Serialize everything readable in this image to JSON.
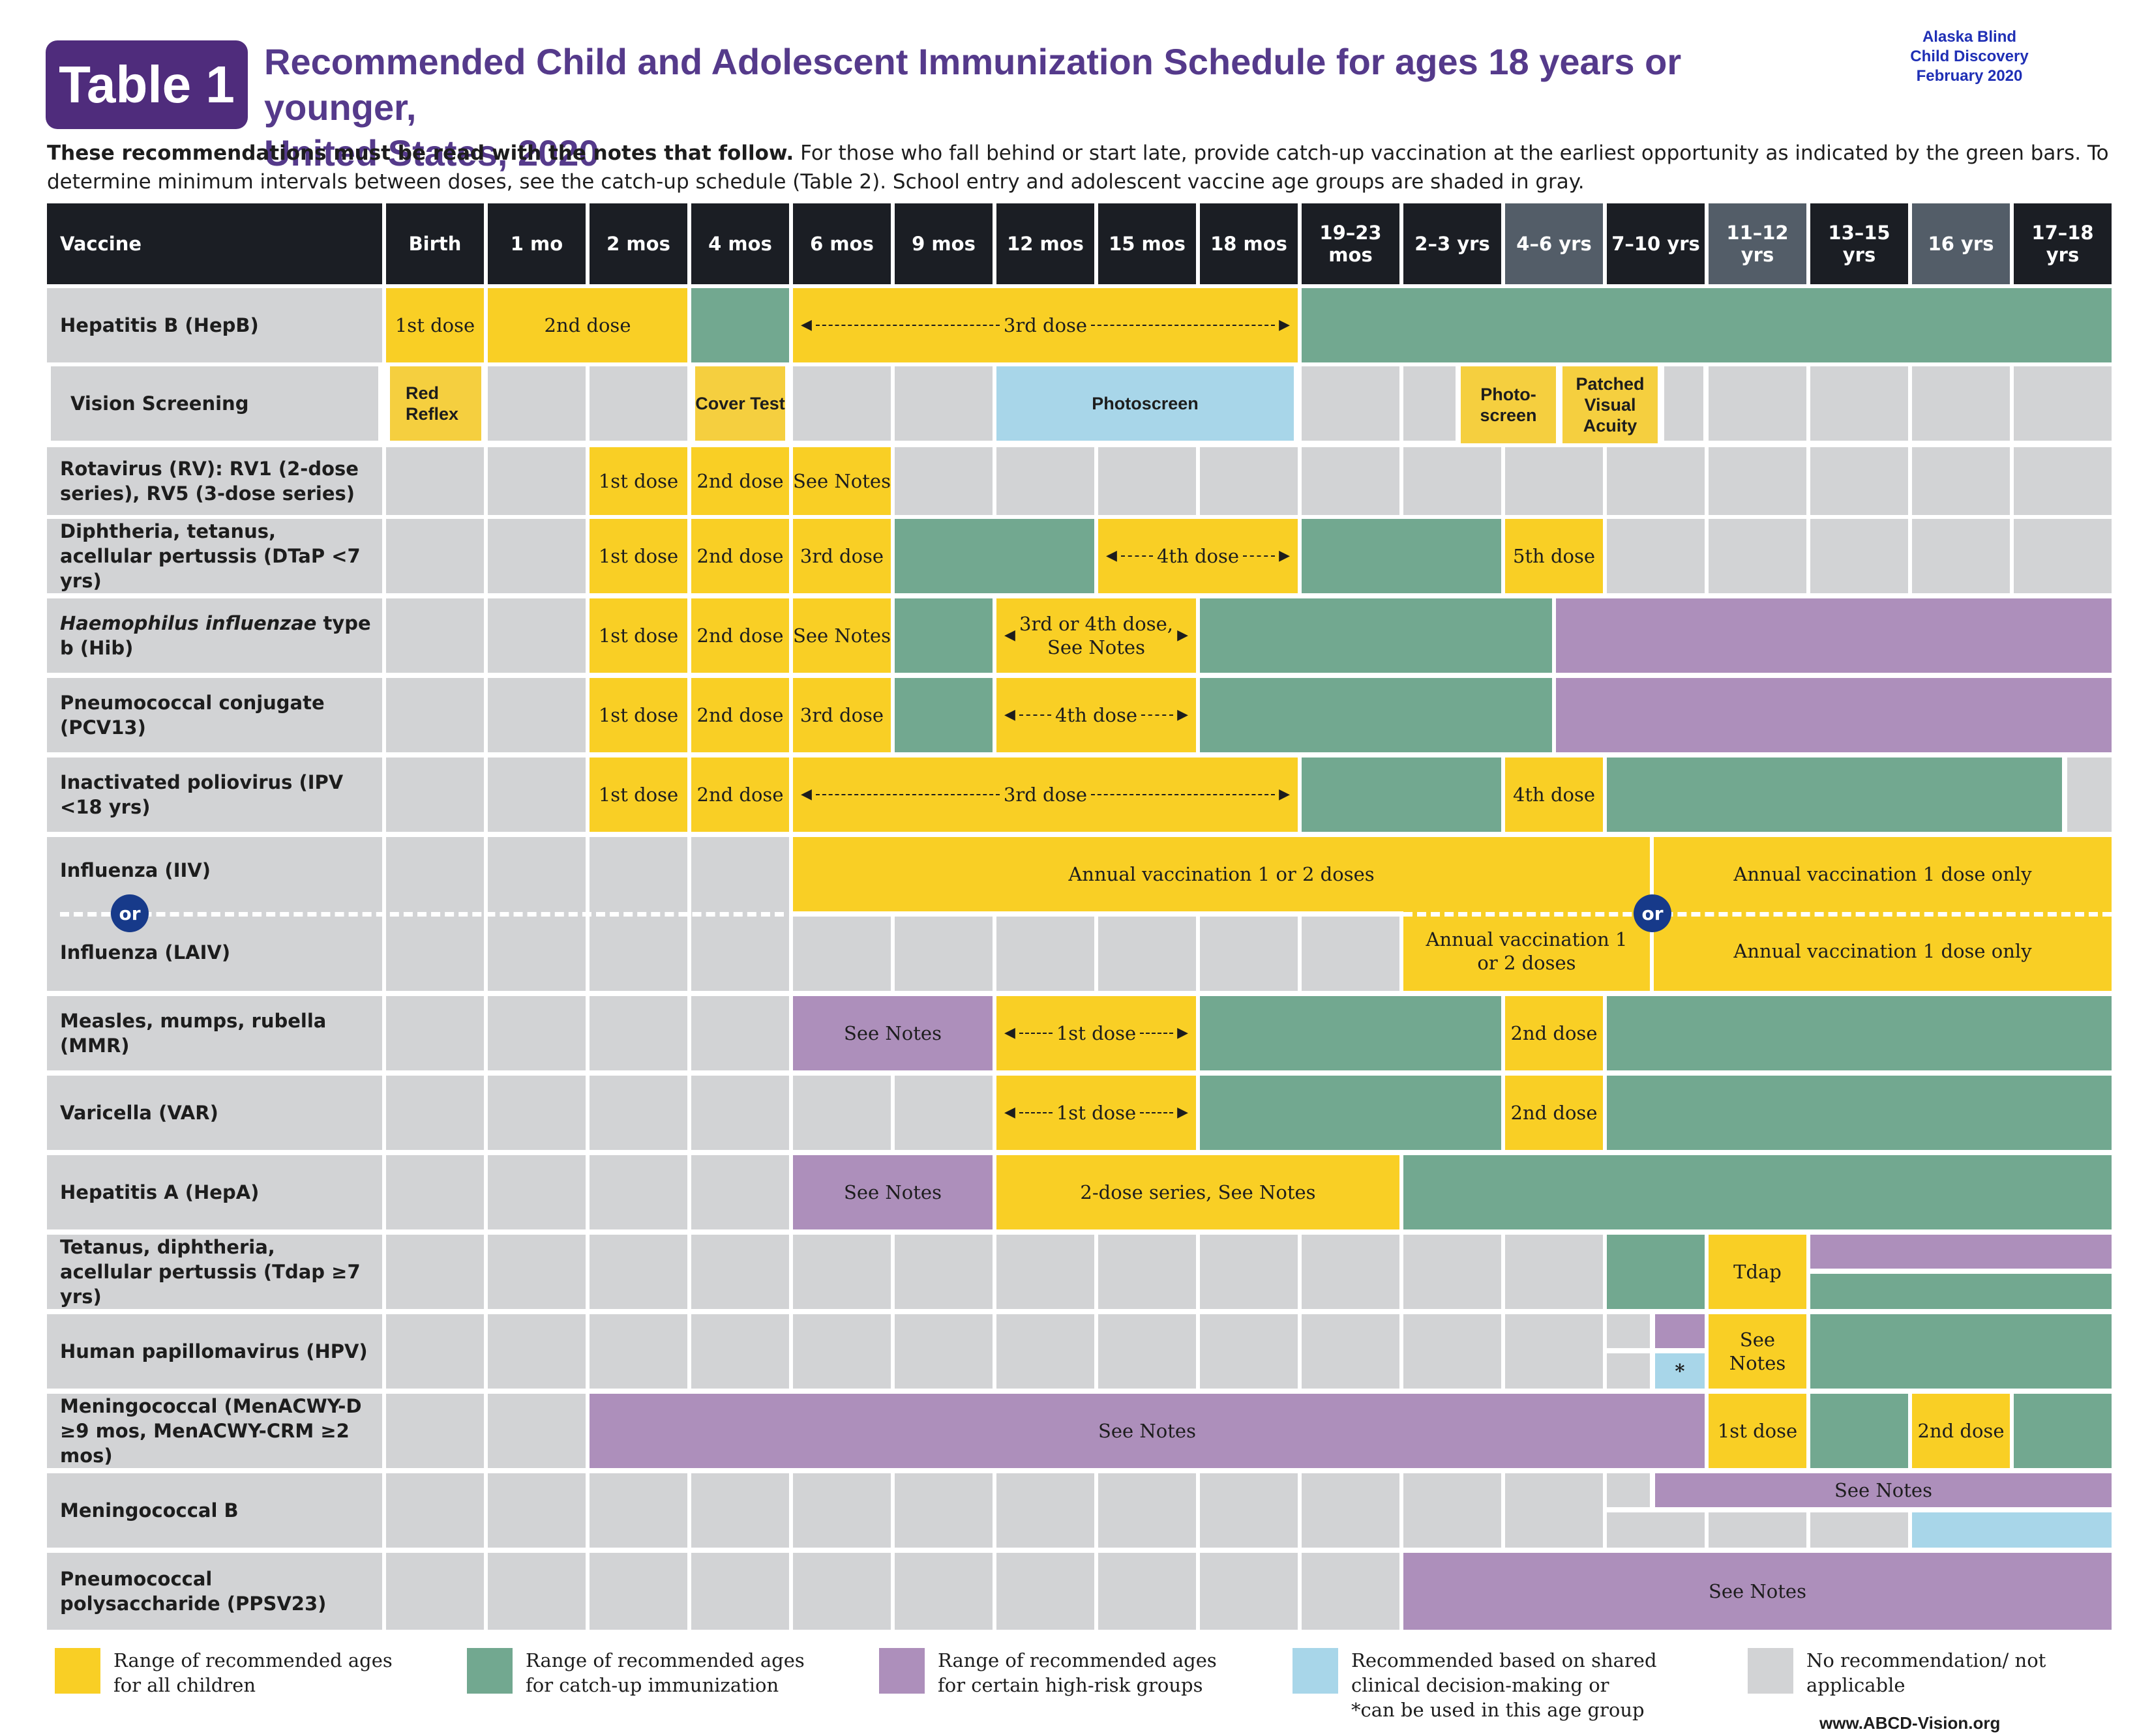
{
  "header": {
    "badge": "Table 1",
    "title_line1": "Recommended Child and Adolescent Immunization Schedule for ages 18 years or younger,",
    "title_line2": "United States, 2020",
    "org_line1": "Alaska Blind",
    "org_line2": "Child Discovery",
    "org_line3": "February 2020",
    "note_bold": "These recommendations must be read with the notes that follow.",
    "note_rest": " For those who fall behind or start late, provide catch-up vaccination at the earliest opportunity as indicated by the green bars. To determine minimum intervals between doses, see the catch-up schedule (Table 2). School entry and adolescent vaccine age groups are shaded in gray."
  },
  "columns": {
    "vaccine": "Vaccine",
    "ages": [
      "Birth",
      "1 mo",
      "2 mos",
      "4 mos",
      "6 mos",
      "9 mos",
      "12 mos",
      "15 mos",
      "18 mos",
      "19–23 mos",
      "2–3 yrs",
      "4–6 yrs",
      "7–10 yrs",
      "11–12 yrs",
      "13–15 yrs",
      "16 yrs",
      "17–18 yrs"
    ],
    "shaded_age_groups": [
      "4–6 yrs",
      "11–12 yrs",
      "16 yrs"
    ]
  },
  "rows": {
    "hepb": "Hepatitis B (HepB)",
    "vision": "Vision Screening",
    "rv": "Rotavirus (RV): RV1 (2-dose series), RV5 (3-dose series)",
    "dtap": "Diphtheria, tetanus, acellular pertussis (DTaP <7 yrs)",
    "hib_italic": "Haemophilus influenzae",
    "hib_rest": " type b (Hib)",
    "pcv": "Pneumococcal conjugate (PCV13)",
    "ipv": "Inactivated poliovirus (IPV <18 yrs)",
    "iiv": "Influenza (IIV)",
    "laiv": "Influenza (LAIV)",
    "mmr": "Measles, mumps, rubella (MMR)",
    "var": "Varicella (VAR)",
    "hepa": "Hepatitis A (HepA)",
    "tdap": "Tetanus, diphtheria, acellular pertussis (Tdap ≥7 yrs)",
    "hpv": "Human papillomavirus (HPV)",
    "menacwy": "Meningococcal (MenACWY-D ≥9 mos, MenACWY-CRM ≥2 mos)",
    "menb": "Meningococcal B",
    "ppsv": "Pneumococcal polysaccharide (PPSV23)"
  },
  "labels": {
    "d1": "1st dose",
    "d2": "2nd dose",
    "d3": "3rd dose",
    "d4": "4th dose",
    "d5": "5th dose",
    "see_notes": "See Notes",
    "hib_3or4": "3rd or 4th dose, See Notes",
    "red_reflex": "Red Reflex",
    "cover_test": "Cover Test",
    "photoscreen": "Photoscreen",
    "photo_screen2": "Photo- screen",
    "patched": "Patched Visual Acuity",
    "annual_1or2": "Annual vaccination 1 or 2 doses",
    "annual_1only": "Annual vaccination 1 dose only",
    "or": "or",
    "hepa_series": "2-dose series, See Notes",
    "tdap": "Tdap",
    "star": "*"
  },
  "legend": {
    "yellow": "Range of recommended ages for all children",
    "green": "Range of recommended ages for catch-up immunization",
    "purple": "Range of recommended ages for certain high-risk groups",
    "blue_1": "Recommended based on shared clinical decision-making or",
    "blue_2": "*can be used in this age group",
    "gray": "No recommendation/ not applicable"
  },
  "colors": {
    "yellow": "#f9cf25",
    "green": "#72a890",
    "purple": "#ad8fbb",
    "blue": "#a8d6e9",
    "gray": "#d2d3d5",
    "header": "#1b1e24",
    "badge": "#4f2c7c"
  },
  "footer": {
    "url": "www.ABCD-Vision.org"
  }
}
